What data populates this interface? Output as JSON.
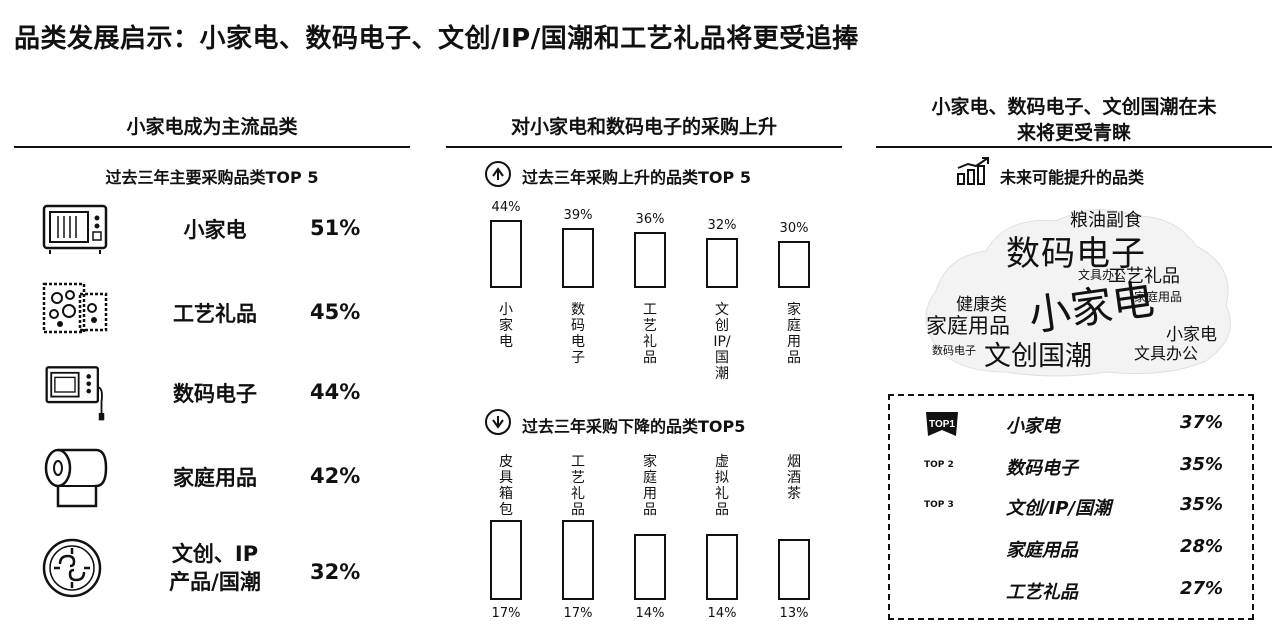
{
  "title": "品类发展启示：小家电、数码电子、文创/IP/国潮和工艺礼品将更受追捧",
  "left": {
    "heading": "小家电成为主流品类",
    "subheading": "过去三年主要采购品类TOP 5",
    "items": [
      {
        "name": "小家电",
        "value": "51%",
        "icon": "microwave-icon"
      },
      {
        "name": "工艺礼品",
        "value": "45%",
        "icon": "craft-gift-icon"
      },
      {
        "name": "数码电子",
        "value": "44%",
        "icon": "digital-device-icon"
      },
      {
        "name": "家庭用品",
        "value": "42%",
        "icon": "paper-roll-icon"
      },
      {
        "name": "文创、IP\n产品/国潮",
        "value": "32%",
        "icon": "chinese-pattern-icon"
      }
    ]
  },
  "middle": {
    "heading": "对小家电和数码电子的采购上升",
    "up_title": "过去三年采购上升的品类TOP 5",
    "down_title": "过去三年采购下降的品类TOP5"
  },
  "right": {
    "heading_line1": "小家电、数码电子、文创国潮在未",
    "heading_line2": "来将更受青睐",
    "subheading": "未来可能提升的品类",
    "ranking": [
      {
        "badge": "TOP1",
        "name": "小家电",
        "value": "37%"
      },
      {
        "badge": "TOP 2",
        "name": "数码电子",
        "value": "35%"
      },
      {
        "badge": "TOP 3",
        "name": "文创/IP/国潮",
        "value": "35%"
      },
      {
        "badge": "",
        "name": "家庭用品",
        "value": "28%"
      },
      {
        "badge": "",
        "name": "工艺礼品",
        "value": "27%"
      }
    ],
    "cloud_words": [
      "粮油副食",
      "数码电子",
      "小家电",
      "文具办公",
      "工艺礼品",
      "健康类",
      "家庭用品",
      "小家电",
      "文创国潮",
      "文具办公",
      "家庭用品",
      "数码电子"
    ]
  },
  "chart_data": [
    {
      "type": "bar",
      "title": "过去三年采购上升的品类TOP 5",
      "categories": [
        "小家电",
        "数码电子",
        "工艺礼品",
        "文创IP/国潮",
        "家庭用品"
      ],
      "values": [
        44,
        39,
        36,
        32,
        30
      ],
      "labels": [
        "44%",
        "39%",
        "36%",
        "32%",
        "30%"
      ]
    },
    {
      "type": "bar",
      "title": "过去三年采购下降的品类TOP5",
      "categories": [
        "皮具箱包",
        "工艺礼品",
        "家庭用品",
        "虚拟礼品",
        "烟酒茶"
      ],
      "values": [
        17,
        17,
        14,
        14,
        13
      ],
      "labels": [
        "17%",
        "17%",
        "14%",
        "14%",
        "13%"
      ]
    }
  ]
}
